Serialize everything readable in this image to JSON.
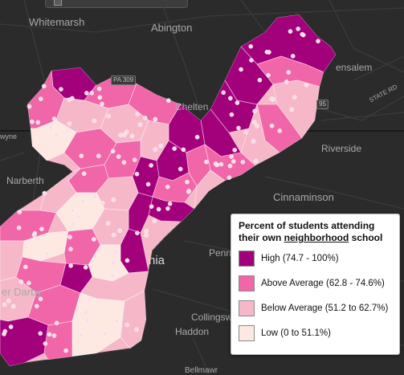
{
  "colors": {
    "high": "#a3007c",
    "above_average": "#f066a8",
    "below_average": "#f6b8c8",
    "low": "#fde8e2",
    "dot": "#f7dde8",
    "basemap": "#2b2b2b"
  },
  "map": {
    "places": {
      "whitemarsh": "Whitemarsh",
      "abington": "Abington",
      "bensalem": "ensalem",
      "cheltenham": "Chelten",
      "riverside": "Riverside",
      "narberth": "Narberth",
      "cinnaminson": "Cinnaminson",
      "pennsauken": "Penns",
      "upper_darby": "er Darby",
      "collingswood": "Collingsw",
      "haddon": "Haddon",
      "bellmawr": "Bellmawr",
      "wayne": "wyne",
      "philadelphia": "nia",
      "state_rd": "STATE RD"
    },
    "shields": {
      "pa309": "PA 309",
      "i95": "95"
    }
  },
  "legend": {
    "title_prefix": "Percent of students attending their own ",
    "title_underlined": "neighborhood",
    "title_suffix": " school",
    "items": [
      {
        "key": "high",
        "label": "High (74.7 - 100%)"
      },
      {
        "key": "above_average",
        "label": "Above Average (62.8 - 74.6%)"
      },
      {
        "key": "below_average",
        "label": "Below Average (51.2 to 62.7%)"
      },
      {
        "key": "low",
        "label": "Low (0 to 51.1%)"
      }
    ]
  }
}
